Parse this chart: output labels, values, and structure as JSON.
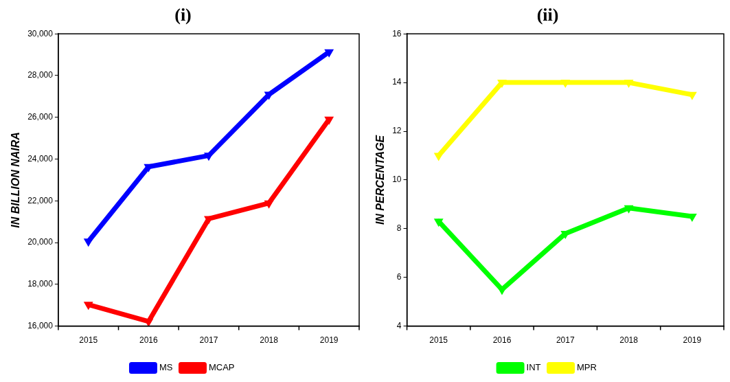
{
  "chart_data": [
    {
      "type": "line",
      "title": "(i)",
      "ylabel": "IN BILLION NAIRA",
      "categories": [
        "2015",
        "2016",
        "2017",
        "2018",
        "2019"
      ],
      "series": [
        {
          "name": "MS",
          "color": "#0000ff",
          "values": [
            20060,
            23630,
            24170,
            27090,
            29130
          ]
        },
        {
          "name": "MCAP",
          "color": "#ff0000",
          "values": [
            17030,
            16220,
            21140,
            21890,
            25900
          ]
        }
      ],
      "ylim": [
        16000,
        30000
      ],
      "yticks": [
        {
          "value": 16000,
          "label": "16,000"
        },
        {
          "value": 18000,
          "label": "18,000"
        },
        {
          "value": 20000,
          "label": "20,000"
        },
        {
          "value": 22000,
          "label": "22,000"
        },
        {
          "value": 24000,
          "label": "24,000"
        },
        {
          "value": 26000,
          "label": "26,000"
        },
        {
          "value": 28000,
          "label": "28,000"
        },
        {
          "value": 30000,
          "label": "30,000"
        }
      ],
      "grid": false,
      "legend": "bottom",
      "marker": "triangle",
      "line_style": "solid"
    },
    {
      "type": "line",
      "title": "(ii)",
      "ylabel": "IN PERCENTAGE",
      "categories": [
        "2015",
        "2016",
        "2017",
        "2018",
        "2019"
      ],
      "series": [
        {
          "name": "INT",
          "color": "#00ff00",
          "values": [
            8.3,
            5.5,
            7.8,
            8.85,
            8.5
          ]
        },
        {
          "name": "MPR",
          "color": "#ffff00",
          "values": [
            11.0,
            14.0,
            14.0,
            14.0,
            13.5
          ]
        }
      ],
      "ylim": [
        4,
        16
      ],
      "yticks": [
        4,
        6,
        8,
        10,
        12,
        14,
        16
      ],
      "grid": false,
      "legend": "bottom",
      "marker": "triangle",
      "line_style": "solid"
    }
  ]
}
